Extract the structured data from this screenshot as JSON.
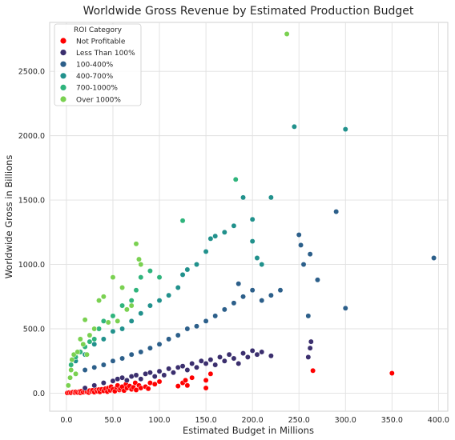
{
  "chart_data": {
    "type": "scatter",
    "title": "Worldwide Gross Revenue by Estimated Production Budget",
    "xlabel": "Estimated Budget in Millions",
    "ylabel": "Worldwide Gross in Billions",
    "xlim": [
      -18,
      410
    ],
    "ylim": [
      -140,
      2880
    ],
    "xticks": [
      0,
      50,
      100,
      150,
      200,
      250,
      300,
      350,
      400
    ],
    "xtick_labels": [
      "0.0",
      "50.0",
      "100.0",
      "150.0",
      "200.0",
      "250.0",
      "300.0",
      "350.0",
      "400.0"
    ],
    "yticks": [
      0,
      500,
      1000,
      1500,
      2000,
      2500
    ],
    "ytick_labels": [
      "0.0",
      "500.0",
      "1000.0",
      "1500.0",
      "2000.0",
      "2500.0"
    ],
    "grid": true,
    "legend": {
      "title": "ROI Category",
      "placement": "top-left",
      "entries": [
        "Not Profitable",
        "Less Than 100%",
        "100-400%",
        "400-700%",
        "700-1000%",
        "Over 1000%"
      ]
    },
    "series": [
      {
        "name": "Not Profitable",
        "color": "#ff0000",
        "points": [
          [
            1,
            2
          ],
          [
            3,
            5
          ],
          [
            5,
            3
          ],
          [
            7,
            8
          ],
          [
            9,
            4
          ],
          [
            10,
            10
          ],
          [
            12,
            6
          ],
          [
            14,
            12
          ],
          [
            15,
            3
          ],
          [
            16,
            15
          ],
          [
            18,
            8
          ],
          [
            20,
            18
          ],
          [
            22,
            10
          ],
          [
            24,
            5
          ],
          [
            25,
            20
          ],
          [
            27,
            14
          ],
          [
            28,
            22
          ],
          [
            30,
            8
          ],
          [
            32,
            25
          ],
          [
            33,
            15
          ],
          [
            35,
            28
          ],
          [
            36,
            10
          ],
          [
            38,
            30
          ],
          [
            40,
            18
          ],
          [
            42,
            35
          ],
          [
            44,
            12
          ],
          [
            45,
            40
          ],
          [
            47,
            22
          ],
          [
            48,
            50
          ],
          [
            50,
            30
          ],
          [
            52,
            15
          ],
          [
            54,
            45
          ],
          [
            55,
            60
          ],
          [
            57,
            25
          ],
          [
            58,
            35
          ],
          [
            60,
            50
          ],
          [
            62,
            20
          ],
          [
            64,
            70
          ],
          [
            65,
            40
          ],
          [
            68,
            55
          ],
          [
            70,
            30
          ],
          [
            72,
            45
          ],
          [
            74,
            80
          ],
          [
            75,
            25
          ],
          [
            78,
            60
          ],
          [
            80,
            40
          ],
          [
            85,
            50
          ],
          [
            88,
            35
          ],
          [
            90,
            80
          ],
          [
            95,
            70
          ],
          [
            100,
            90
          ],
          [
            120,
            55
          ],
          [
            125,
            80
          ],
          [
            128,
            100
          ],
          [
            130,
            60
          ],
          [
            135,
            120
          ],
          [
            150,
            40
          ],
          [
            150,
            100
          ],
          [
            155,
            150
          ],
          [
            265,
            175
          ],
          [
            350,
            155
          ]
        ]
      },
      {
        "name": "Less Than 100%",
        "color": "#3b2f6e",
        "points": [
          [
            20,
            40
          ],
          [
            30,
            60
          ],
          [
            40,
            80
          ],
          [
            50,
            95
          ],
          [
            55,
            110
          ],
          [
            60,
            120
          ],
          [
            65,
            100
          ],
          [
            70,
            130
          ],
          [
            75,
            140
          ],
          [
            80,
            110
          ],
          [
            85,
            150
          ],
          [
            90,
            160
          ],
          [
            95,
            130
          ],
          [
            100,
            170
          ],
          [
            105,
            140
          ],
          [
            110,
            190
          ],
          [
            115,
            160
          ],
          [
            120,
            200
          ],
          [
            125,
            210
          ],
          [
            130,
            180
          ],
          [
            135,
            230
          ],
          [
            140,
            200
          ],
          [
            145,
            250
          ],
          [
            150,
            230
          ],
          [
            155,
            260
          ],
          [
            160,
            220
          ],
          [
            165,
            280
          ],
          [
            170,
            250
          ],
          [
            175,
            300
          ],
          [
            180,
            270
          ],
          [
            185,
            230
          ],
          [
            190,
            310
          ],
          [
            195,
            280
          ],
          [
            200,
            330
          ],
          [
            205,
            300
          ],
          [
            210,
            320
          ],
          [
            220,
            290
          ],
          [
            260,
            280
          ],
          [
            262,
            350
          ],
          [
            263,
            400
          ]
        ]
      },
      {
        "name": "100-400%",
        "color": "#2c5f8a",
        "points": [
          [
            10,
            150
          ],
          [
            20,
            180
          ],
          [
            30,
            200
          ],
          [
            40,
            220
          ],
          [
            50,
            250
          ],
          [
            60,
            270
          ],
          [
            70,
            300
          ],
          [
            80,
            320
          ],
          [
            90,
            350
          ],
          [
            100,
            380
          ],
          [
            110,
            420
          ],
          [
            120,
            450
          ],
          [
            130,
            500
          ],
          [
            140,
            520
          ],
          [
            150,
            560
          ],
          [
            160,
            600
          ],
          [
            170,
            650
          ],
          [
            180,
            700
          ],
          [
            185,
            850
          ],
          [
            190,
            750
          ],
          [
            200,
            800
          ],
          [
            210,
            720
          ],
          [
            220,
            760
          ],
          [
            230,
            800
          ],
          [
            250,
            1230
          ],
          [
            252,
            1150
          ],
          [
            255,
            1000
          ],
          [
            260,
            600
          ],
          [
            262,
            1080
          ],
          [
            270,
            880
          ],
          [
            290,
            1410
          ],
          [
            300,
            660
          ],
          [
            395,
            1050
          ]
        ]
      },
      {
        "name": "400-700%",
        "color": "#21918c",
        "points": [
          [
            10,
            250
          ],
          [
            20,
            300
          ],
          [
            30,
            380
          ],
          [
            40,
            420
          ],
          [
            50,
            480
          ],
          [
            60,
            500
          ],
          [
            70,
            560
          ],
          [
            80,
            620
          ],
          [
            90,
            680
          ],
          [
            100,
            720
          ],
          [
            110,
            760
          ],
          [
            120,
            820
          ],
          [
            125,
            920
          ],
          [
            130,
            960
          ],
          [
            140,
            1000
          ],
          [
            150,
            1100
          ],
          [
            155,
            1200
          ],
          [
            160,
            1220
          ],
          [
            170,
            1250
          ],
          [
            180,
            1300
          ],
          [
            190,
            1520
          ],
          [
            200,
            1180
          ],
          [
            200,
            1350
          ],
          [
            205,
            1050
          ],
          [
            210,
            1000
          ],
          [
            220,
            1520
          ],
          [
            245,
            2070
          ],
          [
            300,
            2050
          ]
        ]
      },
      {
        "name": "700-1000%",
        "color": "#2fb47c",
        "points": [
          [
            5,
            220
          ],
          [
            10,
            280
          ],
          [
            15,
            320
          ],
          [
            20,
            360
          ],
          [
            25,
            400
          ],
          [
            30,
            420
          ],
          [
            35,
            500
          ],
          [
            40,
            560
          ],
          [
            50,
            600
          ],
          [
            60,
            680
          ],
          [
            70,
            720
          ],
          [
            75,
            800
          ],
          [
            80,
            900
          ],
          [
            90,
            950
          ],
          [
            100,
            900
          ],
          [
            125,
            1340
          ],
          [
            182,
            1660
          ]
        ]
      },
      {
        "name": "Over 1000%",
        "color": "#7ad151",
        "points": [
          [
            2,
            60
          ],
          [
            4,
            120
          ],
          [
            5,
            180
          ],
          [
            6,
            260
          ],
          [
            8,
            300
          ],
          [
            10,
            150
          ],
          [
            12,
            320
          ],
          [
            15,
            420
          ],
          [
            18,
            380
          ],
          [
            20,
            570
          ],
          [
            22,
            300
          ],
          [
            25,
            450
          ],
          [
            30,
            500
          ],
          [
            35,
            720
          ],
          [
            40,
            750
          ],
          [
            45,
            550
          ],
          [
            50,
            900
          ],
          [
            55,
            560
          ],
          [
            60,
            820
          ],
          [
            65,
            650
          ],
          [
            70,
            680
          ],
          [
            75,
            1160
          ],
          [
            78,
            1040
          ],
          [
            80,
            1000
          ],
          [
            237,
            2790
          ]
        ]
      }
    ]
  }
}
